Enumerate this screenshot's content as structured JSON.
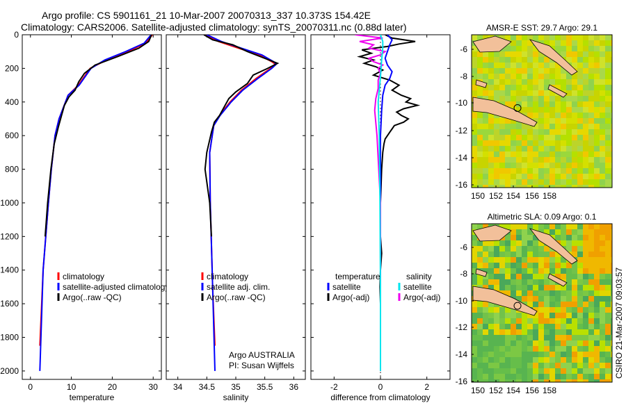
{
  "header": {
    "line1": "Argo profile: CS 5901161_21 10-Mar-2007 20070313_337 10.373S 154.42E",
    "line2": "Climatology: CARS2006. Satellite-adjusted climatology: synTS_20070311.nc (0.88d later)"
  },
  "side_text": "CSIRO 21-Mar-2007 09:03:57",
  "colors": {
    "clim": "#ff0000",
    "sat": "#0000ff",
    "argo": "#000000",
    "cyan": "#00e5ee",
    "magenta": "#ee00ee",
    "land": "#f2c09a"
  },
  "chart_data": [
    {
      "type": "line",
      "id": "temperature",
      "xlabel": "temperature",
      "ylabel": "",
      "xlim": [
        -2,
        32
      ],
      "ylim": [
        2050,
        0
      ],
      "xticks": [
        "0",
        "10",
        "20",
        "30"
      ],
      "yticks": [
        "0",
        "200",
        "400",
        "600",
        "800",
        "1000",
        "1200",
        "1400",
        "1600",
        "1800",
        "2000"
      ],
      "legend": [
        "climatology",
        "satellite-adjusted climatology",
        "Argo(..raw -QC)"
      ],
      "series": [
        {
          "key": "clim",
          "depth": [
            0,
            50,
            100,
            150,
            200,
            300,
            360,
            500,
            600,
            800,
            1000,
            1400,
            1850
          ],
          "values": [
            29.8,
            28.2,
            23.8,
            18.6,
            14.6,
            11.7,
            9.2,
            7.0,
            6.0,
            5.1,
            4.4,
            3.1,
            2.3
          ]
        },
        {
          "key": "sat",
          "depth": [
            0,
            50,
            100,
            150,
            200,
            300,
            360,
            500,
            600,
            800,
            1000,
            1400,
            2000
          ],
          "values": [
            29.5,
            27.8,
            23.3,
            18.2,
            14.8,
            11.9,
            9.2,
            7.0,
            6.0,
            5.1,
            4.4,
            3.1,
            2.3
          ]
        },
        {
          "key": "argo",
          "depth": [
            0,
            40,
            80,
            130,
            180,
            230,
            280,
            330,
            370,
            420,
            480,
            550,
            650,
            800,
            1000,
            1200
          ],
          "values": [
            29.6,
            28.9,
            26.5,
            21.3,
            15.8,
            13.2,
            11.8,
            10.9,
            9.4,
            8.3,
            7.6,
            6.8,
            5.8,
            5.0,
            4.2,
            3.6
          ]
        }
      ]
    },
    {
      "type": "line",
      "id": "salinity",
      "xlabel": "salinity",
      "ylabel": "",
      "xlim": [
        33.8,
        36.2
      ],
      "ylim": [
        2050,
        0
      ],
      "xticks": [
        "34",
        "34.5",
        "35",
        "35.5",
        "36"
      ],
      "legend": [
        "climatology",
        "satellite adj. clim.",
        "Argo(..raw -QC)"
      ],
      "annotations": [
        "Argo AUSTRALIA",
        "PI: Susan Wijffels"
      ],
      "series": [
        {
          "key": "clim",
          "depth": [
            0,
            40,
            80,
            120,
            160,
            175,
            200,
            260,
            330,
            400,
            480,
            540,
            700,
            1000,
            1500,
            1850
          ],
          "values": [
            34.45,
            34.7,
            35.05,
            35.4,
            35.62,
            35.68,
            35.6,
            35.35,
            35.1,
            34.9,
            34.72,
            34.62,
            34.55,
            34.56,
            34.6,
            34.64
          ]
        },
        {
          "key": "sat",
          "depth": [
            0,
            40,
            80,
            120,
            160,
            175,
            200,
            260,
            330,
            400,
            480,
            540,
            700,
            1000,
            1500,
            2000
          ],
          "values": [
            34.5,
            34.75,
            35.1,
            35.45,
            35.65,
            35.7,
            35.62,
            35.38,
            35.12,
            34.92,
            34.73,
            34.62,
            34.55,
            34.56,
            34.6,
            34.64
          ]
        },
        {
          "key": "argo",
          "depth": [
            0,
            30,
            60,
            100,
            140,
            170,
            200,
            240,
            290,
            340,
            380,
            430,
            480,
            520,
            580,
            700,
            800,
            1000,
            1200
          ],
          "values": [
            34.45,
            34.6,
            34.95,
            35.2,
            35.5,
            35.72,
            35.55,
            35.3,
            35.2,
            35.0,
            34.88,
            34.8,
            34.72,
            34.63,
            34.58,
            34.5,
            34.47,
            34.55,
            34.58
          ]
        }
      ]
    },
    {
      "type": "line",
      "id": "difference",
      "xlabel": "difference from climatology",
      "ylabel": "",
      "xlim": [
        -3,
        3
      ],
      "ylim": [
        2050,
        0
      ],
      "xticks": [
        "-2",
        "0",
        "2"
      ],
      "legend_temp": [
        "temperature",
        "satellite",
        "Argo(-adj)"
      ],
      "legend_sal": [
        "salinity",
        "satellite",
        "Argo(-adj)"
      ],
      "series": [
        {
          "key": "argo_t",
          "depth": [
            0,
            20,
            40,
            55,
            70,
            90,
            110,
            130,
            150,
            170,
            190,
            210,
            240,
            270,
            300,
            330,
            360,
            380,
            400,
            420,
            440,
            460,
            480,
            500,
            520,
            540,
            560,
            580,
            600,
            620,
            650,
            700,
            800,
            1000,
            1200,
            1300,
            1400,
            1500,
            1600,
            1800,
            2000
          ],
          "values": [
            0.2,
            0.5,
            1.5,
            0.8,
            0.3,
            -0.8,
            -0.4,
            -0.9,
            -0.3,
            -0.7,
            -0.2,
            0.1,
            -0.3,
            0.4,
            0.8,
            0.5,
            0.9,
            1.3,
            1.1,
            1.6,
            1.0,
            0.7,
            0.9,
            1.2,
            1.0,
            0.6,
            0.5,
            0.4,
            0.3,
            0.2,
            0.15,
            0.1,
            0.05,
            0.0,
            0.0,
            0.05,
            0.0,
            -0.02,
            0.0,
            0.0,
            0.0
          ]
        },
        {
          "key": "sat_t",
          "depth": [
            0,
            30,
            60,
            100,
            140,
            180,
            220,
            260,
            300,
            360,
            450,
            600,
            1000,
            2000
          ],
          "values": [
            0.3,
            0.5,
            0.4,
            0.3,
            0.2,
            0.3,
            0.5,
            0.4,
            0.2,
            0.1,
            0.05,
            0.0,
            0.0,
            0.0
          ]
        },
        {
          "key": "argo_s",
          "depth": [
            0,
            20,
            40,
            60,
            80,
            100,
            120,
            140,
            160,
            180,
            200,
            230,
            270,
            320,
            380,
            450,
            600,
            1000,
            1400,
            2000
          ],
          "values": [
            -1.1,
            0.1,
            -0.9,
            -0.3,
            -0.5,
            0.2,
            0.0,
            -0.5,
            -0.3,
            0.1,
            -0.1,
            0.0,
            -0.1,
            -0.1,
            -0.2,
            -0.25,
            -0.15,
            0.0,
            0.0,
            0.0
          ]
        },
        {
          "key": "sat_s",
          "depth": [
            0,
            40,
            80,
            150,
            250,
            400,
            600,
            1000,
            1500,
            2000
          ],
          "values": [
            0.0,
            0.1,
            0.1,
            0.05,
            0.0,
            -0.1,
            -0.05,
            -0.02,
            0.0,
            0.0
          ]
        }
      ]
    }
  ],
  "maps": [
    {
      "title": "AMSR-E SST: 29.7 Argo: 29.1",
      "xticks": [
        "150",
        "152",
        "154",
        "156",
        "158"
      ],
      "yticks": [
        "-6",
        "-8",
        "-10",
        "-12",
        "-14",
        "-16"
      ]
    },
    {
      "title": "Altimetric SLA: 0.09 Argo: 0.1",
      "xticks": [
        "150",
        "152",
        "154",
        "156",
        "158"
      ],
      "yticks": [
        "-6",
        "-8",
        "-10",
        "-12",
        "-14",
        "-16"
      ]
    }
  ]
}
